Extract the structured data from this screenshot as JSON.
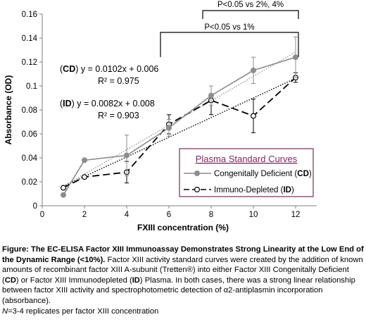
{
  "chart_data": {
    "type": "line",
    "xlabel": "FXIII concentration (%)",
    "ylabel": "Absorbance (OD)",
    "xlim": [
      0,
      13
    ],
    "ylim": [
      0,
      0.16
    ],
    "x_ticks": [
      "0",
      "2",
      "4",
      "6",
      "8",
      "10",
      "12"
    ],
    "y_ticks": [
      "0",
      "0.02",
      "0.04",
      "0.06",
      "0.08",
      "0.1",
      "0.12",
      "0.14",
      "0.16"
    ],
    "grid": false,
    "legend": {
      "title": "Plasma Standard Curves",
      "placement": "bottom-right",
      "entries": [
        {
          "prefix": "Congenitally Deficient (",
          "bold": "CD",
          "suffix": ")"
        },
        {
          "prefix": "Immuno-Depleted  (",
          "bold": "ID",
          "suffix": ")"
        }
      ]
    },
    "series": [
      {
        "name": "Congenitally Deficient (CD)",
        "color": "#8c8c8c",
        "line_style": "solid",
        "marker": "filled-circle",
        "x": [
          1,
          2,
          4,
          6,
          8,
          10,
          12
        ],
        "y": [
          0.009,
          0.038,
          0.042,
          0.065,
          0.092,
          0.113,
          0.124
        ],
        "err": [
          0.0,
          0.0015,
          0.017,
          0.007,
          0.008,
          0.011,
          0.017
        ]
      },
      {
        "name": "Immuno-Depleted (ID)",
        "color": "#000000",
        "line_style": "dashed",
        "marker": "open-circle",
        "x": [
          1,
          2,
          4,
          6,
          8,
          10,
          12
        ],
        "y": [
          0.015,
          0.024,
          0.028,
          0.068,
          0.088,
          0.075,
          0.107
        ],
        "err": [
          0.0,
          0.0,
          0.009,
          0.008,
          0.012,
          0.014,
          0.004
        ]
      }
    ],
    "trendlines": [
      {
        "series": "CD",
        "slope": 0.0102,
        "intercept": 0.006,
        "x_range": [
          1,
          12
        ],
        "color": "#9a9a9a"
      },
      {
        "series": "ID",
        "slope": 0.0082,
        "intercept": 0.008,
        "x_range": [
          1,
          12
        ],
        "color": "#000000"
      }
    ],
    "equations": [
      {
        "open": "(",
        "bold": "CD",
        "rest": ") y = 0.0102x + 0.006",
        "r2": "R² = 0.975"
      },
      {
        "open": "(",
        "bold": "ID",
        "rest": ") y = 0.0082x + 0.008",
        "r2": "R² = 0.903"
      }
    ],
    "significance": [
      {
        "label": "P<0.05 vs 2%, 4%",
        "x_from": 8,
        "x_to": 12
      },
      {
        "label": "P<0.05 vs 1%",
        "x_from": 6,
        "x_to": 12
      }
    ]
  },
  "caption": {
    "title": "Figure: The EC-ELISA Factor XIII Immunoassay Demonstrates Strong Linearity at the Low End of the Dynamic Range (<10%).",
    "body_1": " Factor XIII activity standard curves were created by the addition of known amounts of recombinant factor XIII A-subunit (Tretten®) into either Factor XIII Congenitally Deficient (",
    "cd": "CD",
    "body_2": ") or Factor XIII Immunodepleted (",
    "id": "ID",
    "body_3": ") Plasma. In both cases, there was a strong linear relationship between factor XIII activity and spectrophotometric detection of α2-antiplasmin incorporation (absorbance).",
    "n": "N",
    "body_4": "=3-4 replicates per factor XIII concentration"
  }
}
